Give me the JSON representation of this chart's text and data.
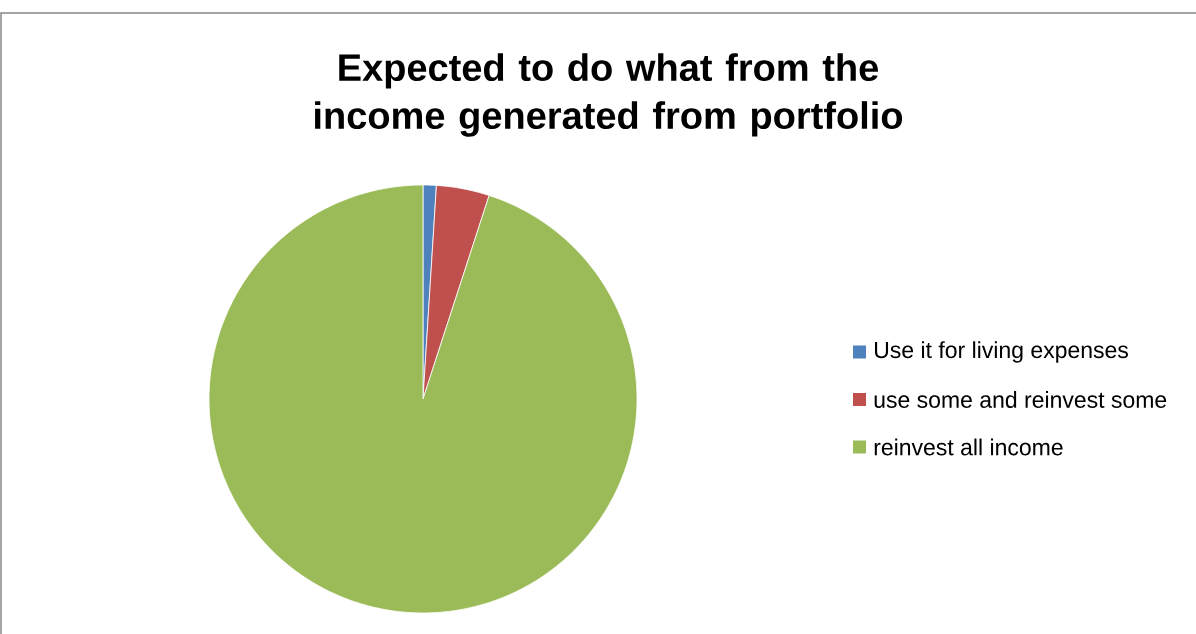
{
  "chart_data": {
    "type": "pie",
    "title": "Expected to do what from the income generated from portfolio",
    "categories": [
      "Use it for living expenses",
      "use some and reinvest some",
      "reinvest all income"
    ],
    "values": [
      1,
      4,
      95
    ],
    "colors": [
      "#4f81bd",
      "#c0504d",
      "#9bbb59"
    ],
    "legend": "right"
  }
}
